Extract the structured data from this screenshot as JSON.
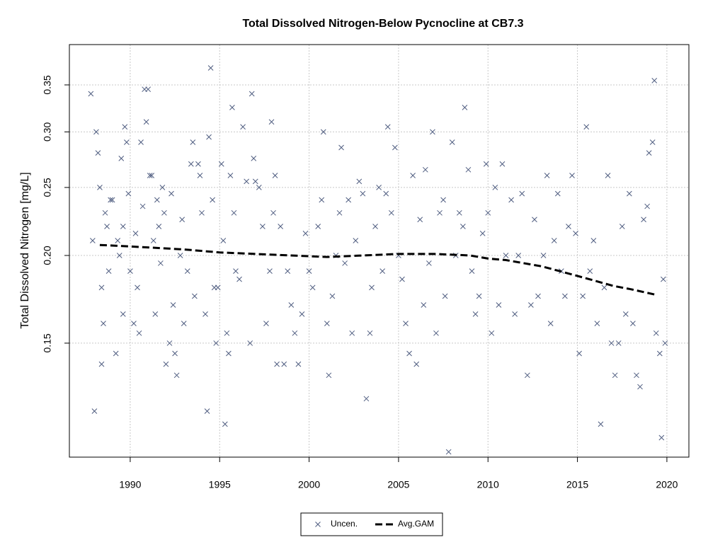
{
  "chart_data": {
    "type": "scatter",
    "title": "Total Dissolved Nitrogen-Below Pycnocline at CB7.3",
    "y_label": "Total Dissolved Nitrogen [mg/L]",
    "xlim": [
      1986.6,
      2021.23
    ],
    "ylim": [
      0.1032,
      0.3995
    ],
    "y_scale": "log",
    "xticks": [
      1990,
      1995,
      2000,
      2005,
      2010,
      2015,
      2020
    ],
    "yticks": [
      {
        "value": 0.15,
        "label": "0.15"
      },
      {
        "value": 0.2,
        "label": "0.20"
      },
      {
        "value": 0.25,
        "label": "0.25"
      },
      {
        "value": 0.3,
        "label": "0.30"
      },
      {
        "value": 0.35,
        "label": "0.35"
      }
    ],
    "grid": true,
    "legend": "bottom",
    "series": [
      {
        "name": "Uncen.",
        "mode": "markers",
        "color": "#4f5d80",
        "x": [
          1987.8,
          1987.9,
          1988.0,
          1988.1,
          1988.2,
          1988.3,
          1988.4,
          1988.4,
          1988.5,
          1988.6,
          1988.7,
          1988.8,
          1988.9,
          1989.0,
          1989.2,
          1989.3,
          1989.4,
          1989.5,
          1989.6,
          1989.6,
          1989.7,
          1989.8,
          1989.9,
          1990.0,
          1990.2,
          1990.3,
          1990.4,
          1990.5,
          1990.6,
          1990.7,
          1990.8,
          1990.9,
          1991.0,
          1991.1,
          1991.2,
          1991.3,
          1991.4,
          1991.5,
          1991.6,
          1991.7,
          1991.8,
          1991.9,
          1992.0,
          1992.2,
          1992.3,
          1992.4,
          1992.5,
          1992.6,
          1992.8,
          1992.9,
          1993.0,
          1993.2,
          1993.4,
          1993.5,
          1993.6,
          1993.8,
          1993.9,
          1994.0,
          1994.2,
          1994.3,
          1994.4,
          1994.5,
          1994.6,
          1994.7,
          1994.8,
          1994.9,
          1995.1,
          1995.2,
          1995.3,
          1995.4,
          1995.5,
          1995.6,
          1995.7,
          1995.8,
          1995.9,
          1996.1,
          1996.3,
          1996.5,
          1996.7,
          1996.8,
          1996.9,
          1997.0,
          1997.2,
          1997.4,
          1997.6,
          1997.8,
          1997.9,
          1998.0,
          1998.1,
          1998.2,
          1998.4,
          1998.6,
          1998.8,
          1999.0,
          1999.2,
          1999.4,
          1999.6,
          1999.8,
          2000.0,
          2000.2,
          2000.5,
          2000.7,
          2000.8,
          2001.0,
          2001.1,
          2001.3,
          2001.5,
          2001.7,
          2001.8,
          2002.0,
          2002.2,
          2002.4,
          2002.6,
          2002.8,
          2003.0,
          2003.2,
          2003.4,
          2003.5,
          2003.7,
          2003.9,
          2004.1,
          2004.3,
          2004.4,
          2004.6,
          2004.8,
          2005.0,
          2005.2,
          2005.4,
          2005.6,
          2005.8,
          2006.0,
          2006.2,
          2006.4,
          2006.5,
          2006.7,
          2006.9,
          2007.1,
          2007.3,
          2007.5,
          2007.6,
          2007.8,
          2008.0,
          2008.2,
          2008.4,
          2008.6,
          2008.7,
          2008.9,
          2009.1,
          2009.3,
          2009.5,
          2009.7,
          2009.9,
          2010.0,
          2010.2,
          2010.4,
          2010.6,
          2010.8,
          2011.0,
          2011.3,
          2011.5,
          2011.7,
          2011.9,
          2012.2,
          2012.4,
          2012.6,
          2012.8,
          2013.1,
          2013.3,
          2013.5,
          2013.7,
          2013.9,
          2014.1,
          2014.3,
          2014.5,
          2014.7,
          2014.9,
          2015.1,
          2015.3,
          2015.5,
          2015.7,
          2015.9,
          2016.1,
          2016.3,
          2016.5,
          2016.7,
          2016.9,
          2017.1,
          2017.3,
          2017.5,
          2017.7,
          2017.9,
          2018.1,
          2018.3,
          2018.5,
          2018.7,
          2018.9,
          2019.0,
          2019.2,
          2019.3,
          2019.4,
          2019.6,
          2019.7,
          2019.8,
          2019.9
        ],
        "values": [
          0.34,
          0.21,
          0.12,
          0.3,
          0.28,
          0.25,
          0.18,
          0.14,
          0.16,
          0.23,
          0.22,
          0.19,
          0.24,
          0.24,
          0.145,
          0.21,
          0.2,
          0.275,
          0.165,
          0.22,
          0.305,
          0.29,
          0.245,
          0.19,
          0.16,
          0.215,
          0.18,
          0.155,
          0.29,
          0.235,
          0.345,
          0.31,
          0.345,
          0.26,
          0.26,
          0.21,
          0.165,
          0.24,
          0.22,
          0.195,
          0.25,
          0.23,
          0.14,
          0.15,
          0.245,
          0.17,
          0.145,
          0.135,
          0.2,
          0.225,
          0.16,
          0.19,
          0.27,
          0.29,
          0.175,
          0.27,
          0.26,
          0.23,
          0.165,
          0.12,
          0.295,
          0.37,
          0.24,
          0.18,
          0.15,
          0.18,
          0.27,
          0.21,
          0.115,
          0.155,
          0.145,
          0.26,
          0.325,
          0.23,
          0.19,
          0.185,
          0.305,
          0.255,
          0.15,
          0.34,
          0.275,
          0.255,
          0.25,
          0.22,
          0.16,
          0.19,
          0.31,
          0.23,
          0.26,
          0.14,
          0.22,
          0.14,
          0.19,
          0.17,
          0.155,
          0.14,
          0.165,
          0.215,
          0.19,
          0.18,
          0.22,
          0.24,
          0.3,
          0.16,
          0.135,
          0.175,
          0.2,
          0.23,
          0.285,
          0.195,
          0.24,
          0.155,
          0.21,
          0.255,
          0.245,
          0.125,
          0.155,
          0.18,
          0.22,
          0.25,
          0.19,
          0.245,
          0.305,
          0.23,
          0.285,
          0.2,
          0.185,
          0.16,
          0.145,
          0.26,
          0.14,
          0.225,
          0.17,
          0.265,
          0.195,
          0.3,
          0.155,
          0.23,
          0.24,
          0.175,
          0.105,
          0.29,
          0.2,
          0.23,
          0.22,
          0.325,
          0.265,
          0.19,
          0.165,
          0.175,
          0.215,
          0.27,
          0.23,
          0.155,
          0.25,
          0.17,
          0.27,
          0.2,
          0.24,
          0.165,
          0.2,
          0.245,
          0.135,
          0.17,
          0.225,
          0.175,
          0.2,
          0.26,
          0.16,
          0.21,
          0.245,
          0.19,
          0.175,
          0.22,
          0.26,
          0.215,
          0.145,
          0.175,
          0.305,
          0.19,
          0.21,
          0.16,
          0.115,
          0.18,
          0.26,
          0.15,
          0.135,
          0.15,
          0.22,
          0.165,
          0.245,
          0.16,
          0.135,
          0.13,
          0.225,
          0.235,
          0.28,
          0.29,
          0.355,
          0.155,
          0.145,
          0.11,
          0.185,
          0.15
        ]
      },
      {
        "name": "Avg.GAM",
        "mode": "lines",
        "color": "#000000",
        "x": [
          1988.3,
          1990,
          1991.5,
          1993,
          1995,
          1997,
          1999,
          2001,
          2003,
          2005,
          2007,
          2009,
          2010,
          2011,
          2012,
          2013,
          2014,
          2015,
          2016,
          2017,
          2018,
          2019.3
        ],
        "values": [
          0.207,
          0.206,
          0.205,
          0.204,
          0.202,
          0.201,
          0.2,
          0.199,
          0.2,
          0.201,
          0.201,
          0.2,
          0.198,
          0.197,
          0.195,
          0.193,
          0.19,
          0.187,
          0.184,
          0.181,
          0.179,
          0.176
        ]
      }
    ]
  }
}
